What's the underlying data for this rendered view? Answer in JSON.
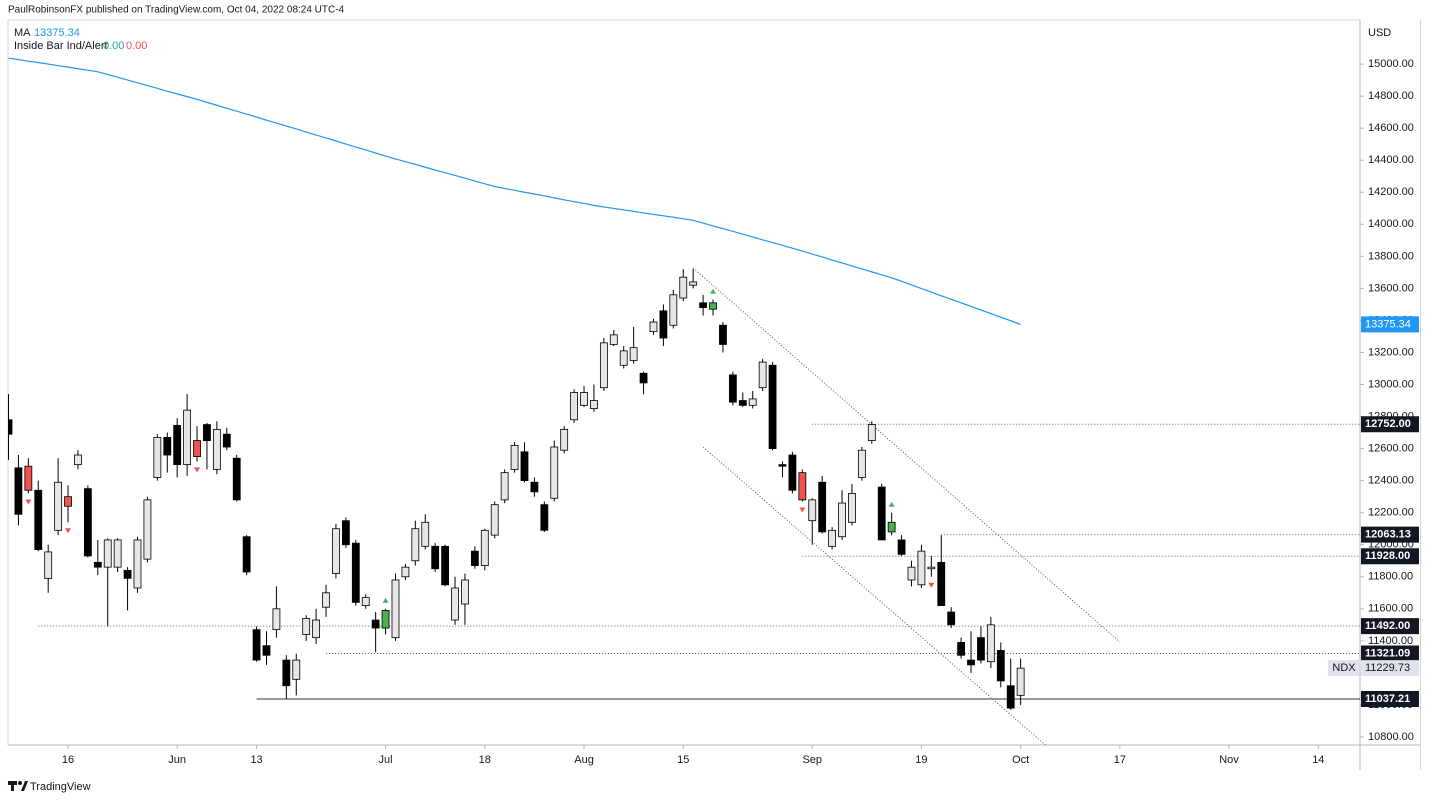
{
  "header": {
    "publisher": "PaulRobinsonFX published on TradingView.com, Oct 04, 2022 08:24 UTC-4",
    "inside_bar": {
      "name": "Inside Bar Ind/Alert",
      "values": [
        "0.00",
        "0.00"
      ]
    }
  },
  "footer": {
    "brand": "TradingView"
  },
  "chart_data": {
    "type": "candlestick",
    "symbol": "NDX",
    "currency": "USD",
    "open": [
      12780,
      12480,
      12490,
      12340,
      11790,
      12090,
      12300,
      12500,
      12350,
      11890,
      11860,
      11860,
      11840,
      11730,
      11910,
      12420,
      12670,
      12745,
      12500,
      12650,
      12750,
      12470,
      12690,
      12540,
      12050,
      11470,
      11370,
      11470,
      11280,
      11160,
      11440,
      11420,
      11610,
      11820,
      12150,
      12010,
      11620,
      11530,
      11480,
      11420,
      11800,
      11900,
      11990,
      11990,
      11990,
      11530,
      11630,
      11960,
      11870,
      12060,
      12280,
      12470,
      12580,
      12390,
      12250,
      12290,
      12590,
      12780,
      12870,
      12850,
      12980,
      13250,
      13120,
      13150,
      13070,
      13330,
      13460,
      13370,
      13540,
      13620,
      13510,
      13470,
      13370,
      13060,
      12900,
      12870,
      12980,
      13120,
      12500,
      12560,
      12450,
      12150,
      12390,
      11990,
      12050,
      12140,
      12420,
      12650,
      12360,
      12080,
      12030,
      11780,
      11750,
      11850,
      11890,
      11580,
      11390,
      11280,
      11420,
      11270,
      11340,
      11120,
      11060
    ],
    "high": [
      12940,
      12560,
      12540,
      12400,
      12000,
      12540,
      12370,
      12590,
      12370,
      12030,
      12040,
      12040,
      11860,
      12050,
      12300,
      12690,
      12700,
      12790,
      12940,
      12740,
      12760,
      12770,
      12730,
      12560,
      12060,
      11490,
      11460,
      11740,
      11310,
      11320,
      11560,
      11600,
      11750,
      12130,
      12170,
      12030,
      11690,
      11580,
      11600,
      11820,
      11880,
      12150,
      12190,
      12010,
      12000,
      11800,
      11820,
      11990,
      12100,
      12270,
      12470,
      12640,
      12640,
      12420,
      12270,
      12650,
      12740,
      12970,
      12990,
      13000,
      13290,
      13340,
      13240,
      13360,
      13080,
      13410,
      13500,
      13590,
      13720,
      13720,
      13560,
      13530,
      13390,
      13080,
      12950,
      12960,
      13160,
      13140,
      12520,
      12580,
      12470,
      12290,
      12430,
      12110,
      12340,
      12380,
      12610,
      12770,
      12380,
      12200,
      12060,
      11900,
      12000,
      11930,
      12060,
      11610,
      11420,
      11460,
      11490,
      11550,
      11390,
      11290,
      11290
    ],
    "low": [
      12530,
      12120,
      12320,
      11960,
      11700,
      12060,
      12140,
      12470,
      11920,
      11810,
      11490,
      11830,
      11590,
      11700,
      11890,
      12400,
      12450,
      12420,
      12430,
      12520,
      12470,
      12440,
      12590,
      12270,
      11810,
      11270,
      11250,
      11420,
      11040,
      11060,
      11400,
      11380,
      11550,
      11790,
      11980,
      11620,
      11600,
      11330,
      11440,
      11400,
      11780,
      11870,
      11970,
      11830,
      11740,
      11500,
      11500,
      11850,
      11840,
      12040,
      12260,
      12450,
      12390,
      12300,
      12080,
      12270,
      12570,
      12760,
      12860,
      12830,
      12960,
      13240,
      13100,
      13130,
      12940,
      13310,
      13240,
      13350,
      13520,
      13600,
      13430,
      13430,
      13200,
      12870,
      12860,
      12850,
      12960,
      12590,
      12420,
      12320,
      12270,
      12000,
      12070,
      11970,
      12030,
      12120,
      12400,
      12630,
      12030,
      12060,
      11930,
      11740,
      11730,
      11800,
      11620,
      11480,
      11290,
      11200,
      11260,
      11230,
      11110,
      10970,
      11000
    ],
    "close": [
      12690,
      12190,
      12340,
      11970,
      11955,
      12390,
      12240,
      12560,
      11930,
      11860,
      12030,
      12030,
      11790,
      12030,
      12280,
      12670,
      12560,
      12500,
      12840,
      12550,
      12650,
      12720,
      12610,
      12280,
      11830,
      11280,
      11310,
      11600,
      11120,
      11280,
      11540,
      11530,
      11700,
      12100,
      12000,
      11640,
      11670,
      11480,
      11590,
      11780,
      11860,
      12100,
      12140,
      11850,
      11750,
      11730,
      11780,
      11870,
      12090,
      12250,
      12450,
      12620,
      12400,
      12330,
      12090,
      12610,
      12720,
      12950,
      12950,
      12900,
      13260,
      13310,
      13210,
      13230,
      13010,
      13390,
      13290,
      13560,
      13670,
      13640,
      13480,
      13510,
      13250,
      12890,
      12870,
      12910,
      13140,
      12600,
      12490,
      12340,
      12280,
      12280,
      12080,
      12090,
      12260,
      12320,
      12590,
      12750,
      12030,
      12140,
      11940,
      11860,
      11960,
      11860,
      11620,
      11500,
      11310,
      11250,
      11280,
      11500,
      11150,
      10980,
      11229.73
    ],
    "up_color": "#e6e6e6",
    "down_color": "#000000",
    "inside_bars_up": [
      38,
      71,
      89
    ],
    "inside_bars_down": [
      2,
      6,
      19,
      80
    ],
    "inside_up_color": "#4caf50",
    "inside_down_color": "#ef5350",
    "alerts_up": [
      38,
      71,
      89
    ],
    "alerts_down": [
      2,
      6,
      19,
      80,
      93
    ],
    "ma": {
      "name": "MA",
      "color": "#2196f3",
      "values": [
        15037,
        15028,
        15018,
        15009,
        15000,
        14990,
        14981,
        14971,
        14962,
        14952,
        14935,
        14918,
        14900,
        14883,
        14866,
        14849,
        14831,
        14814,
        14797,
        14780,
        14761,
        14743,
        14724,
        14706,
        14687,
        14669,
        14650,
        14632,
        14613,
        14595,
        14576,
        14557,
        14539,
        14520,
        14501,
        14482,
        14464,
        14445,
        14426,
        14408,
        14391,
        14374,
        14356,
        14339,
        14322,
        14305,
        14288,
        14270,
        14253,
        14236,
        14224,
        14212,
        14200,
        14189,
        14177,
        14165,
        14153,
        14141,
        14130,
        14118,
        14108,
        14099,
        14090,
        14081,
        14071,
        14062,
        14053,
        14044,
        14035,
        14025,
        14008,
        13990,
        13973,
        13956,
        13938,
        13921,
        13903,
        13886,
        13869,
        13851,
        13833,
        13814,
        13796,
        13777,
        13759,
        13740,
        13722,
        13703,
        13685,
        13666,
        13644,
        13622,
        13599,
        13577,
        13554,
        13532,
        13510,
        13487,
        13465,
        13443,
        13420,
        13398,
        13375.34
      ]
    },
    "levels": [
      {
        "value": 12752,
        "label": "12752.00",
        "from": 81,
        "style": "dotted"
      },
      {
        "value": 12063.13,
        "label": "12063.13",
        "from": 94,
        "style": "dotted"
      },
      {
        "value": 11928,
        "label": "11928.00",
        "from": 80,
        "style": "dotted"
      },
      {
        "value": 11492,
        "label": "11492.00",
        "from": 3,
        "style": "dotted"
      },
      {
        "value": 11321.09,
        "label": "11321.09",
        "from": 32,
        "style": "dotted"
      },
      {
        "value": 11037.21,
        "label": "11037.21",
        "from": 25,
        "style": "solid"
      }
    ],
    "trendlines": [
      {
        "from": [
          69,
          13727
        ],
        "to": [
          112,
          11393
        ]
      },
      {
        "from": [
          70,
          12610
        ],
        "to": [
          104.5,
          10750
        ]
      }
    ],
    "xlim": [
      -0.05,
      136.2
    ],
    "xticks": [
      {
        "value": 6,
        "label": "16"
      },
      {
        "value": 17,
        "label": "Jun"
      },
      {
        "value": 25,
        "label": "13"
      },
      {
        "value": 38,
        "label": "Jul"
      },
      {
        "value": 48,
        "label": "18"
      },
      {
        "value": 58,
        "label": "Aug"
      },
      {
        "value": 68,
        "label": "15"
      },
      {
        "value": 81,
        "label": "Sep"
      },
      {
        "value": 92,
        "label": "19"
      },
      {
        "value": 102,
        "label": "Oct"
      },
      {
        "value": 112,
        "label": "17"
      },
      {
        "value": 123,
        "label": "Nov"
      },
      {
        "value": 132,
        "label": "14"
      }
    ],
    "ylim": [
      10750,
      15400
    ],
    "yticks": [
      {
        "value": 10800,
        "label": "10800.00"
      },
      {
        "value": 11000,
        "label": "11000.00"
      },
      {
        "value": 11200,
        "label": "11200.00"
      },
      {
        "value": 11400,
        "label": "11400.00"
      },
      {
        "value": 11600,
        "label": "11600.00"
      },
      {
        "value": 11800,
        "label": "11800.00"
      },
      {
        "value": 12000,
        "label": "12000.00"
      },
      {
        "value": 12200,
        "label": "12200.00"
      },
      {
        "value": 12400,
        "label": "12400.00"
      },
      {
        "value": 12600,
        "label": "12600.00"
      },
      {
        "value": 12800,
        "label": "12800.00"
      },
      {
        "value": 13000,
        "label": "13000.00"
      },
      {
        "value": 13200,
        "label": "13200.00"
      },
      {
        "value": 13400,
        "label": "13400.00"
      },
      {
        "value": 13600,
        "label": "13600.00"
      },
      {
        "value": 13800,
        "label": "13800.00"
      },
      {
        "value": 14000,
        "label": "14000.00"
      },
      {
        "value": 14200,
        "label": "14200.00"
      },
      {
        "value": 14400,
        "label": "14400.00"
      },
      {
        "value": 14600,
        "label": "14600.00"
      },
      {
        "value": 14800,
        "label": "14800.00"
      },
      {
        "value": 15000,
        "label": "15000.00"
      }
    ],
    "grid": false
  }
}
